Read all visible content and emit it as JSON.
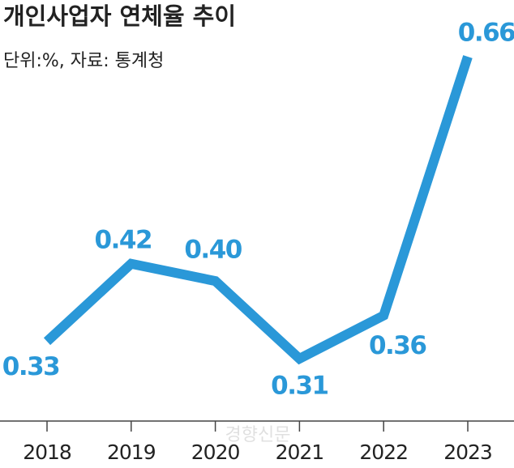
{
  "chart_data": {
    "type": "line",
    "title": "개인사업자 연체율 추이",
    "subtitle": "단위:%, 자료: 통계청",
    "watermark": "경향신문",
    "categories": [
      "2018",
      "2019",
      "2020",
      "2021",
      "2022",
      "2023"
    ],
    "values": [
      0.33,
      0.42,
      0.4,
      0.31,
      0.36,
      0.66
    ],
    "value_labels": [
      "0.33",
      "0.42",
      "0.40",
      "0.31",
      "0.36",
      "0.66"
    ],
    "color": "#2a98d8"
  }
}
